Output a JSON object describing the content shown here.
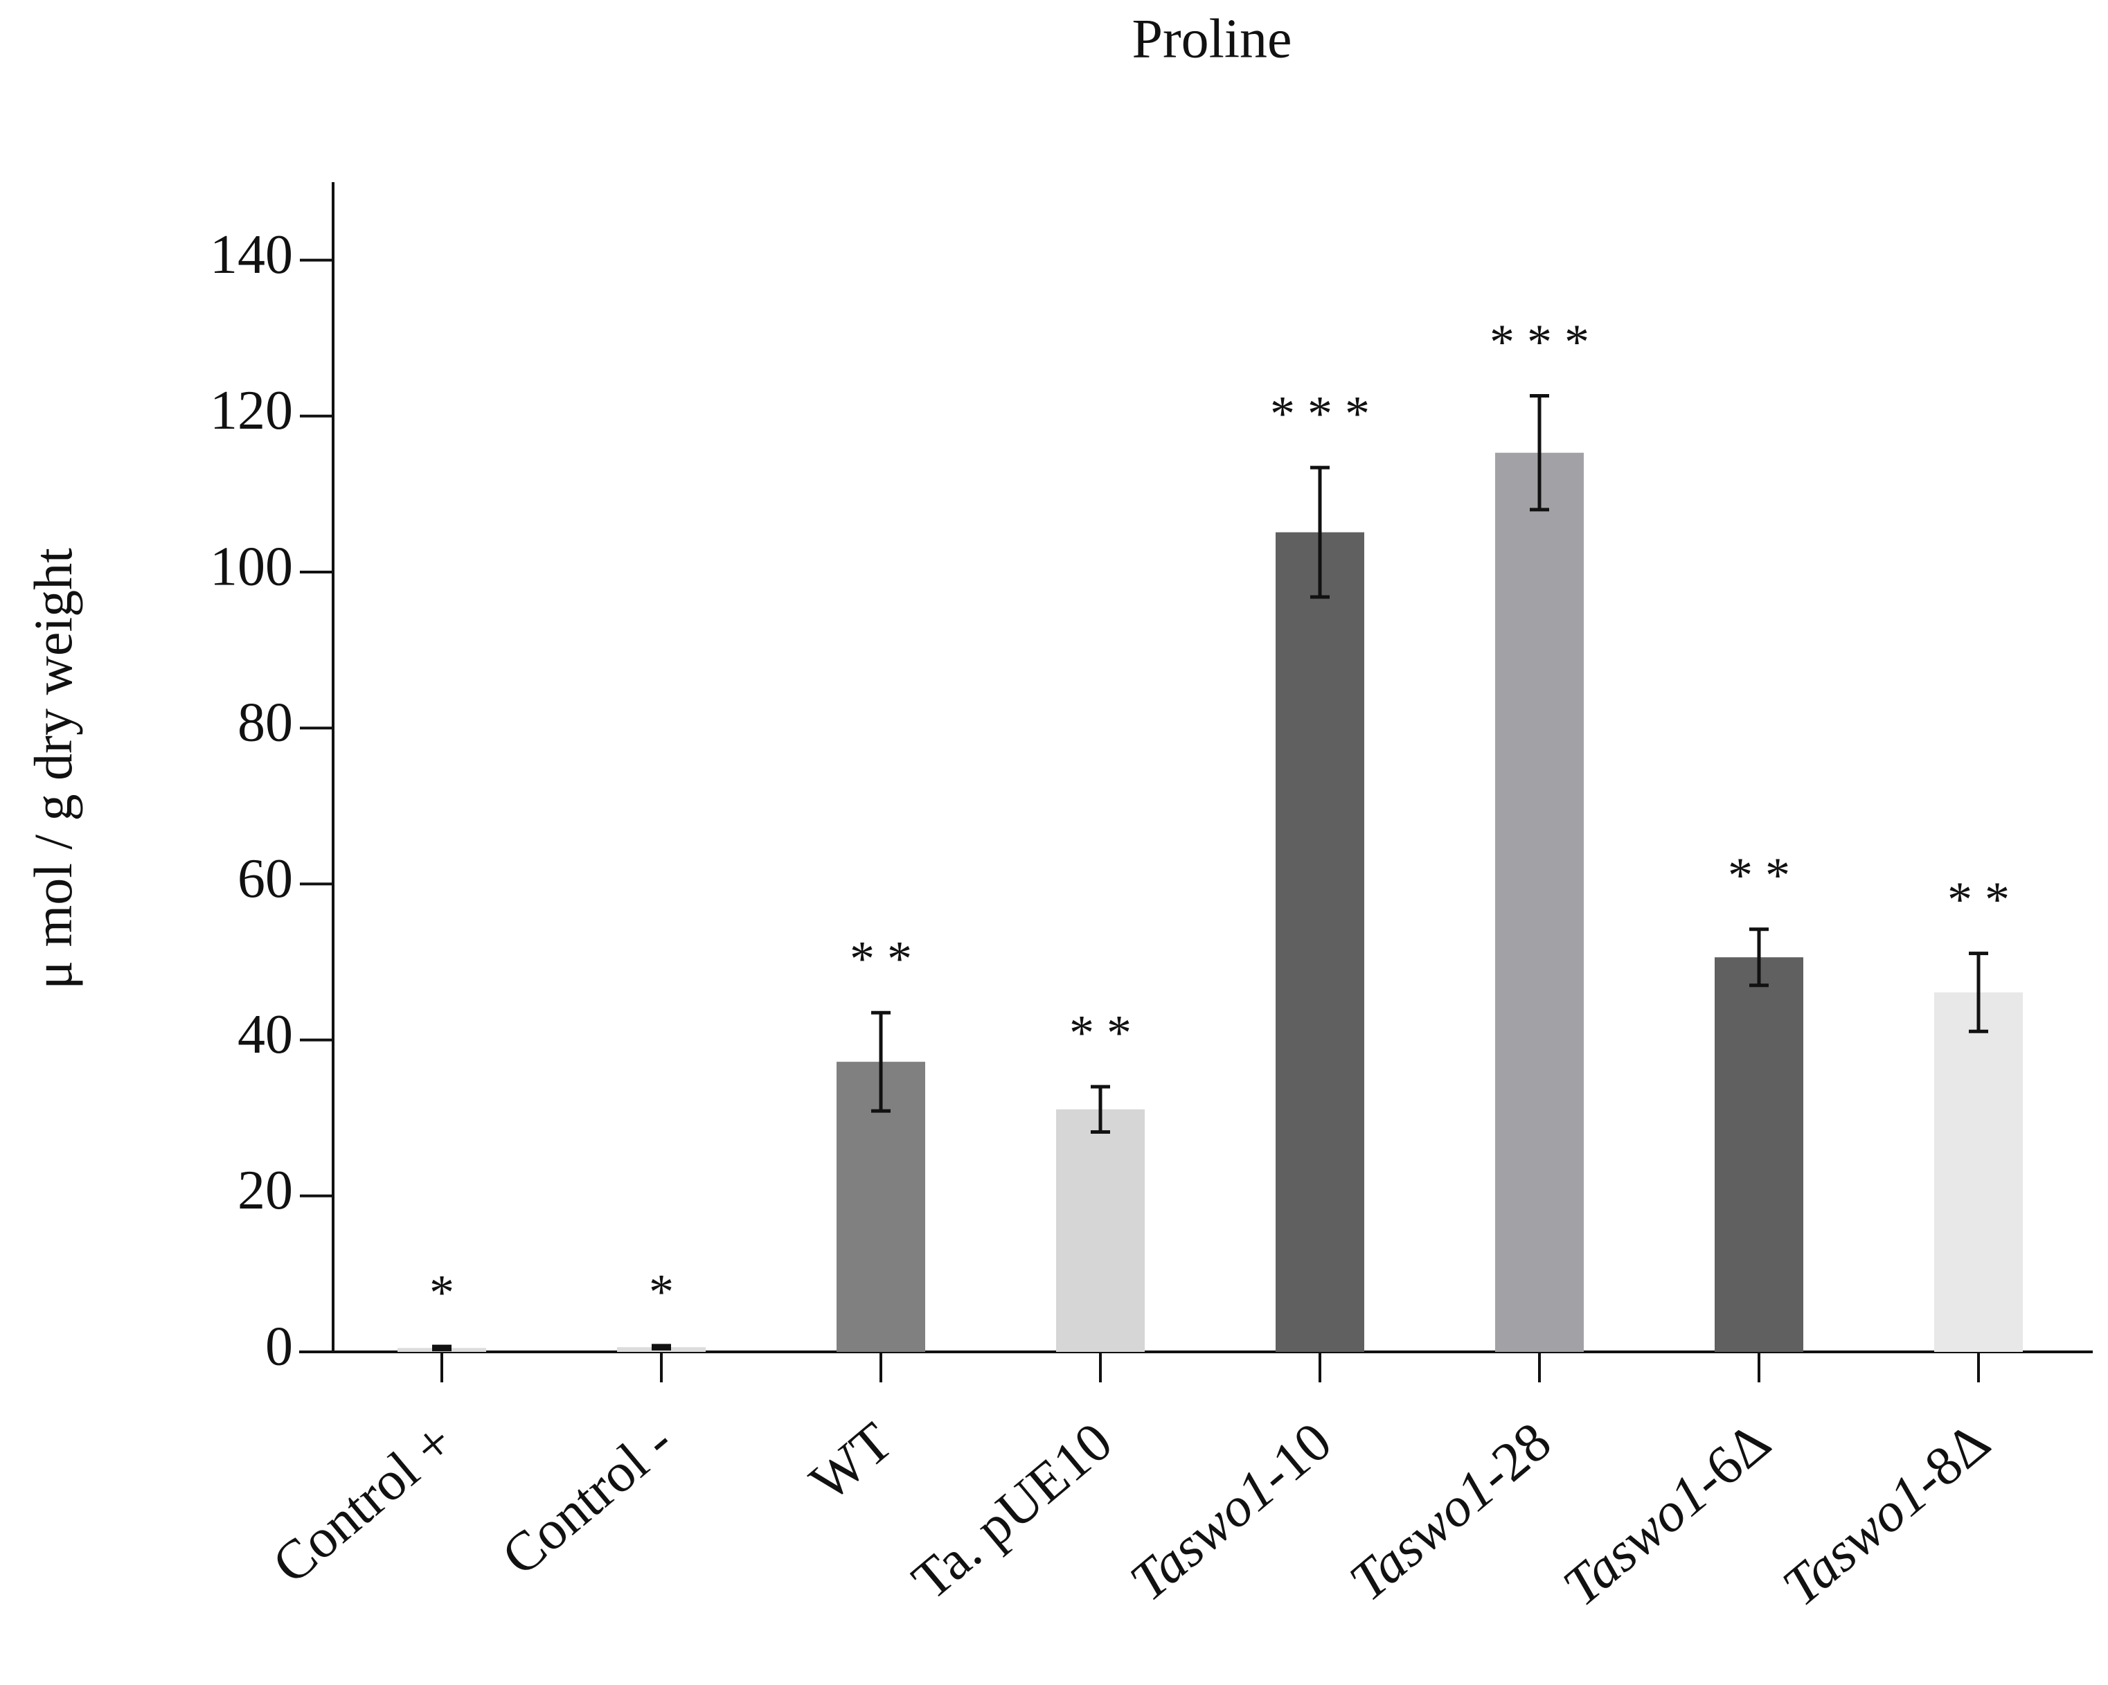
{
  "chart_data": {
    "type": "bar",
    "title": "Proline",
    "y_label": "μ mol / g dry weight",
    "categories": [
      "Control +",
      "Control -",
      "WT",
      "Ta. pUE10",
      "Taswo1-10",
      "Taswo1-28",
      "Taswo1-6Δ",
      "Taswo1-8Δ"
    ],
    "italic": [
      false,
      false,
      false,
      false,
      true,
      true,
      true,
      true
    ],
    "values": [
      0.5,
      0.6,
      37.2,
      31.1,
      105.1,
      115.3,
      50.6,
      46.1
    ],
    "errors": [
      0.2,
      0.2,
      6.3,
      2.9,
      8.3,
      7.3,
      3.6,
      5.0
    ],
    "annotations": [
      "*",
      "*",
      "* *",
      "* *",
      "* * *",
      "* * *",
      "* *",
      "* *"
    ],
    "colors": [
      "#dcdcdc",
      "#dcdcdc",
      "#808080",
      "#d6d6d6",
      "#606060",
      "#a2a1a6",
      "#606060",
      "#e8e8e8"
    ],
    "ylim": [
      0,
      150
    ],
    "yticks": [
      0,
      20,
      40,
      60,
      80,
      100,
      120,
      140
    ],
    "grid": false
  }
}
